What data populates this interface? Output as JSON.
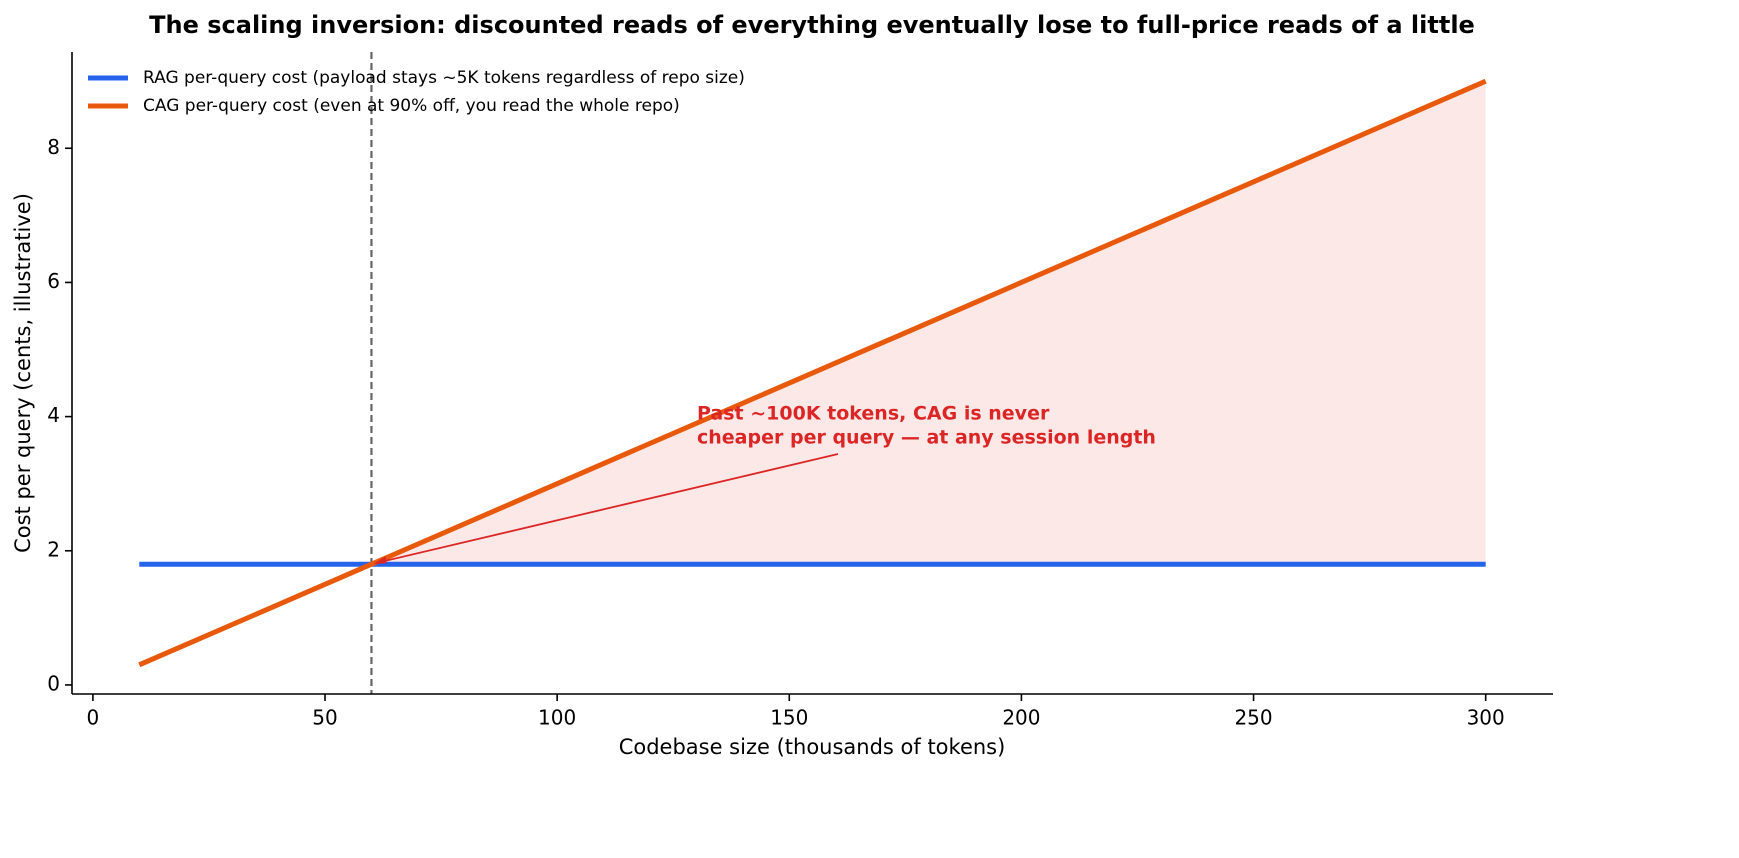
{
  "chart_data": {
    "type": "line",
    "title": "The scaling inversion: discounted reads of everything eventually lose to full-price reads of a little",
    "x_label": "Codebase size (thousands of tokens)",
    "y_label": "Cost per query (cents, illustrative)",
    "x": [
      10,
      60,
      300
    ],
    "series": [
      {
        "name": "RAG per-query cost (payload stays ~5K tokens regardless of repo size)",
        "color": "#2563eb",
        "values": [
          1.8,
          1.8,
          1.8
        ]
      },
      {
        "name": "CAG per-query cost (even at 90% off, you read the whole repo)",
        "color": "#e8590c",
        "values": [
          0.3,
          1.8,
          9.0
        ]
      }
    ],
    "fill_color": "#fde8e8",
    "threshold_x": 60,
    "threshold_color": "#666666",
    "annotation": [
      "Past ~100K tokens, CAG is never",
      "cheaper per query — at any session length"
    ],
    "annotation_color": "#dc2626",
    "xlim": [
      -4.5,
      314.5
    ],
    "ylim": [
      -0.135,
      9.435
    ],
    "xticks": [
      0,
      50,
      100,
      150,
      200,
      250,
      300
    ],
    "yticks": [
      0,
      2,
      4,
      6,
      8
    ],
    "grid": false,
    "legend": "upper left"
  }
}
